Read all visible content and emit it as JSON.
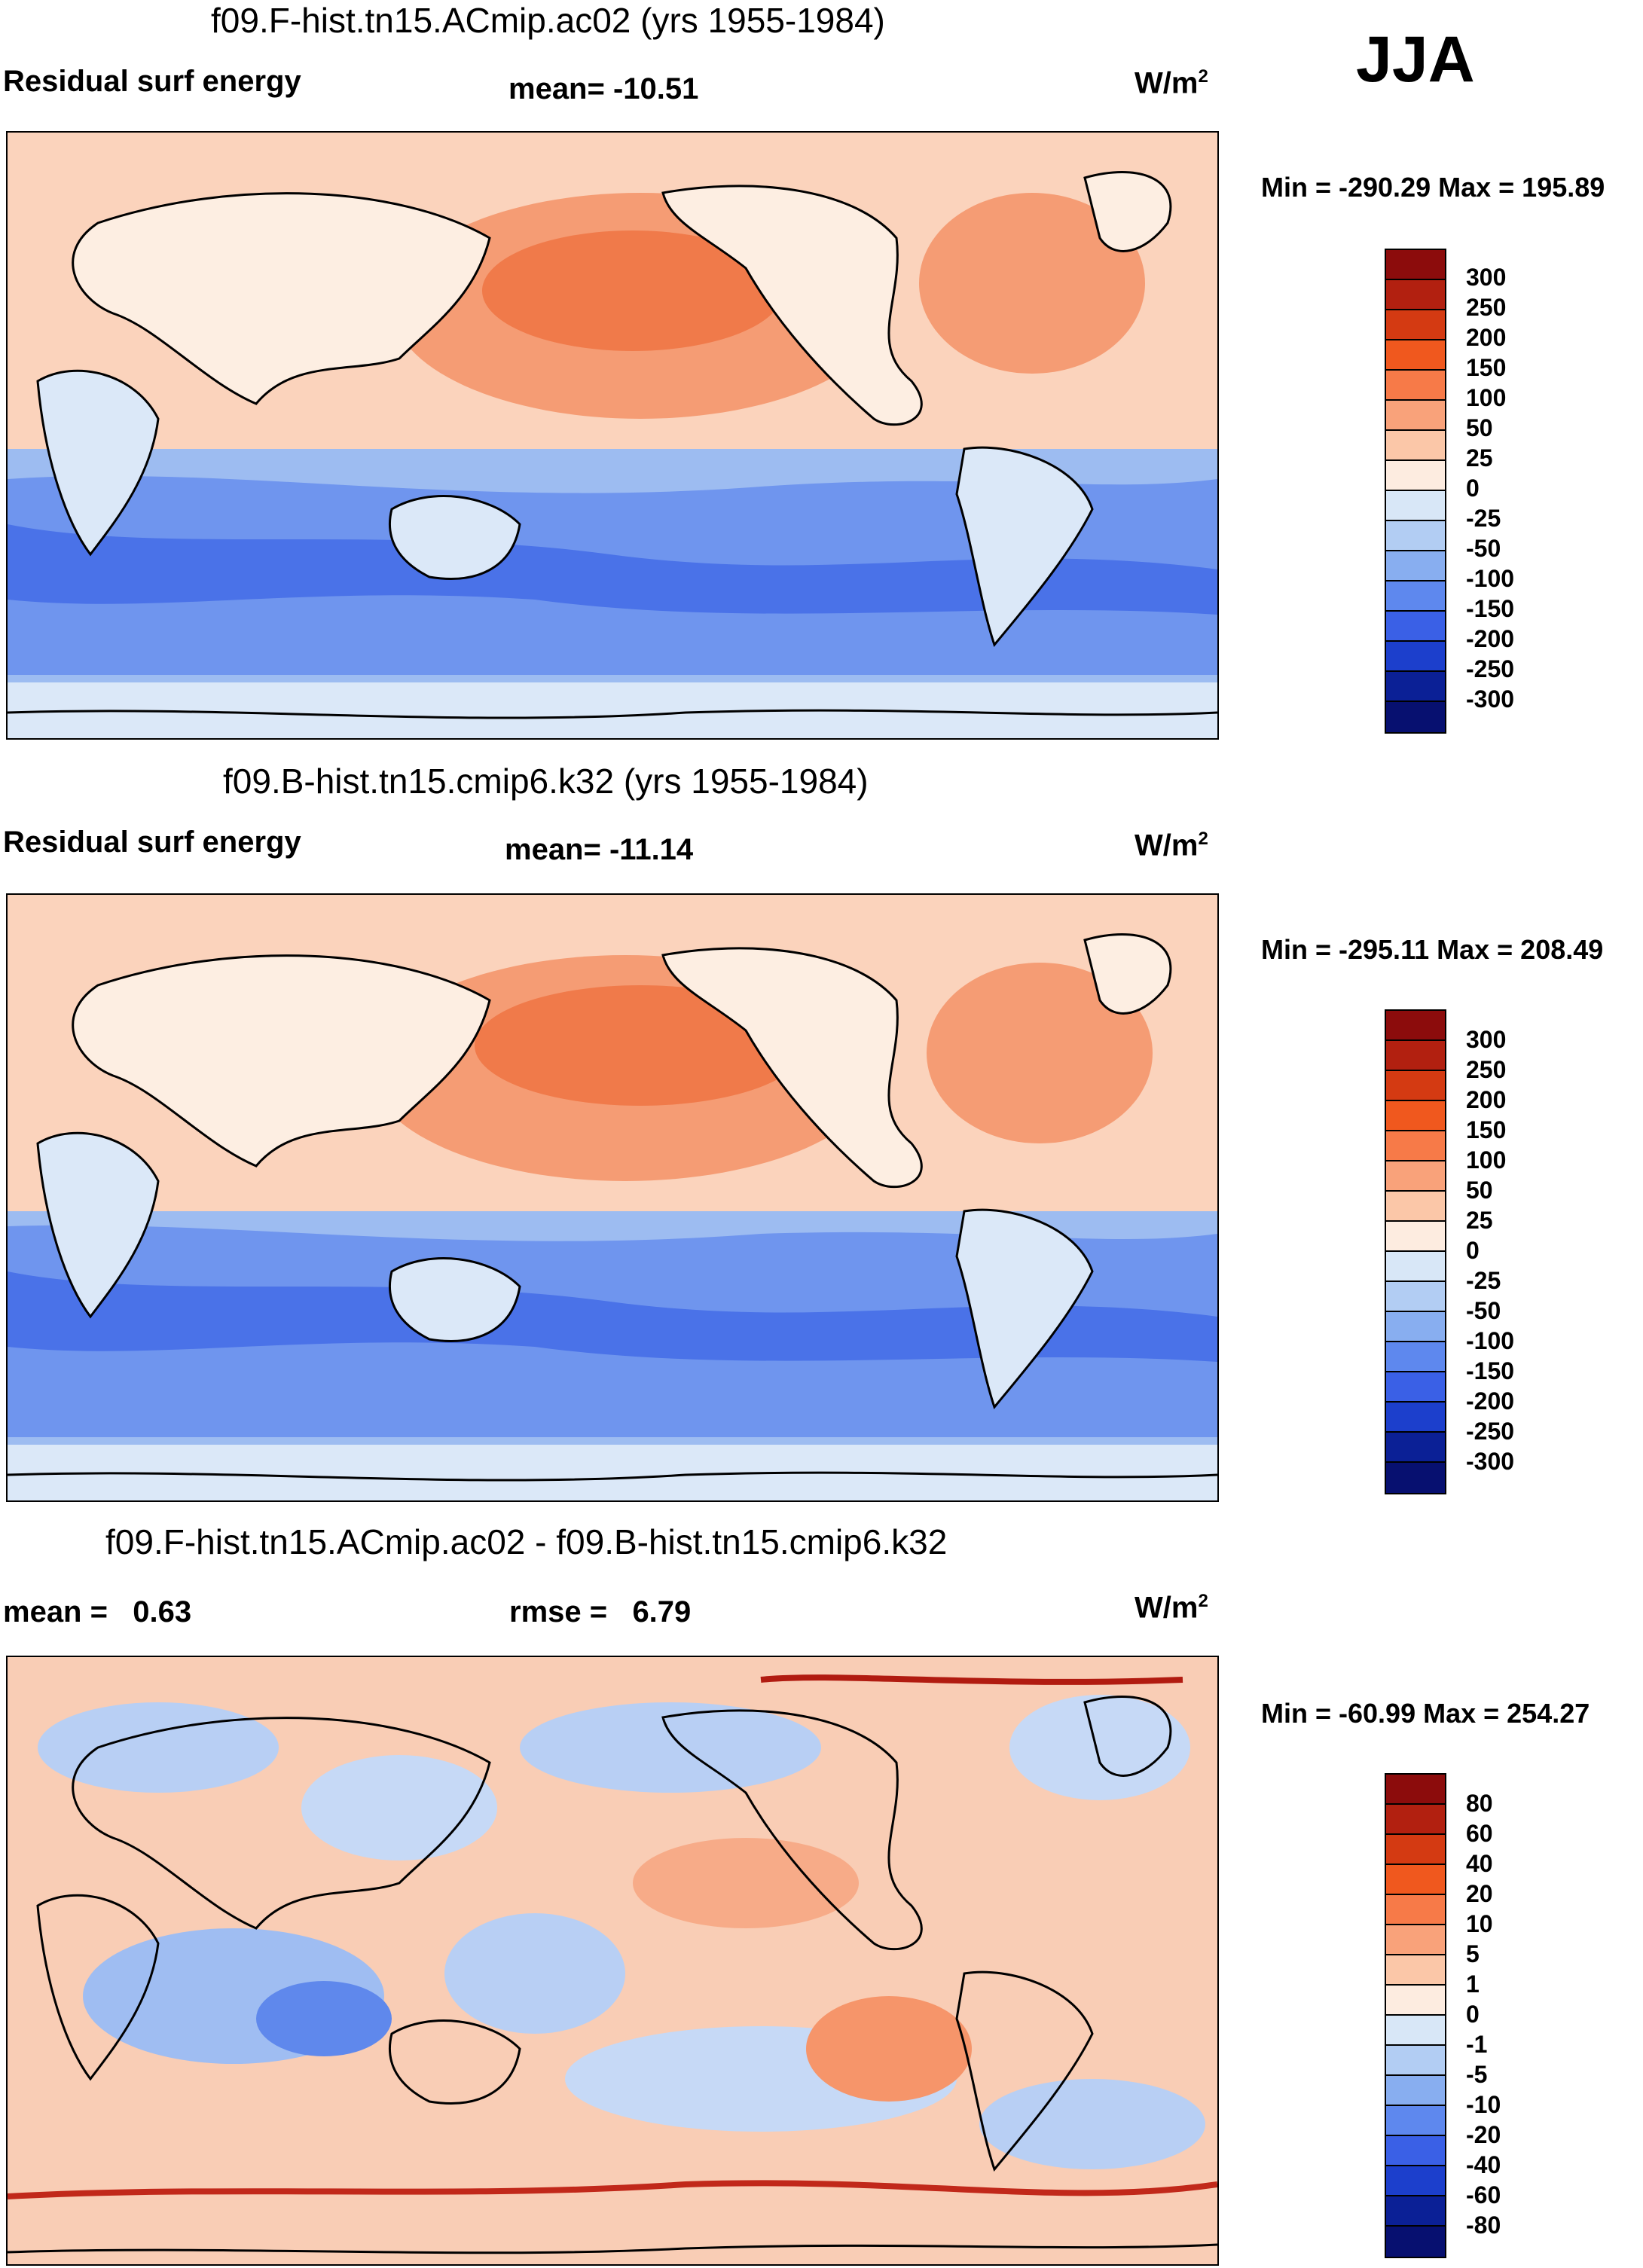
{
  "season": "JJA",
  "panels": [
    {
      "title": "f09.F-hist.tn15.ACmip.ac02 (yrs 1955-1984)",
      "left_label": "Residual surf energy",
      "center_label": "mean= -10.51",
      "units_label": "W/m",
      "units_sup": "2",
      "minmax": "Min = -290.29 Max = 195.89",
      "levels": [
        "300",
        "250",
        "200",
        "150",
        "100",
        "50",
        "25",
        "0",
        "-25",
        "-50",
        "-100",
        "-150",
        "-200",
        "-250",
        "-300"
      ]
    },
    {
      "title": "f09.B-hist.tn15.cmip6.k32 (yrs 1955-1984)",
      "left_label": "Residual surf energy",
      "center_label": "mean= -11.14",
      "units_label": "W/m",
      "units_sup": "2",
      "minmax": "Min = -295.11 Max = 208.49",
      "levels": [
        "300",
        "250",
        "200",
        "150",
        "100",
        "50",
        "25",
        "0",
        "-25",
        "-50",
        "-100",
        "-150",
        "-200",
        "-250",
        "-300"
      ]
    },
    {
      "title": "f09.F-hist.tn15.ACmip.ac02 - f09.B-hist.tn15.cmip6.k32",
      "left_label": "mean =   0.63",
      "center_label": "rmse =   6.79",
      "units_label": "W/m",
      "units_sup": "2",
      "minmax": "Min = -60.99 Max = 254.27",
      "levels": [
        "80",
        "60",
        "40",
        "20",
        "10",
        "5",
        "1",
        "0",
        "-1",
        "-5",
        "-10",
        "-20",
        "-40",
        "-60",
        "-80"
      ]
    }
  ],
  "colorbar_colors": [
    "#8c0c0c",
    "#b22010",
    "#d43a12",
    "#f0581e",
    "#f77a48",
    "#f9a27a",
    "#fbc7a8",
    "#fdece0",
    "#d8e7f7",
    "#b2cdf3",
    "#88aef0",
    "#5e88ee",
    "#3a60e6",
    "#1c3fcc",
    "#0b2096",
    "#071070"
  ]
}
